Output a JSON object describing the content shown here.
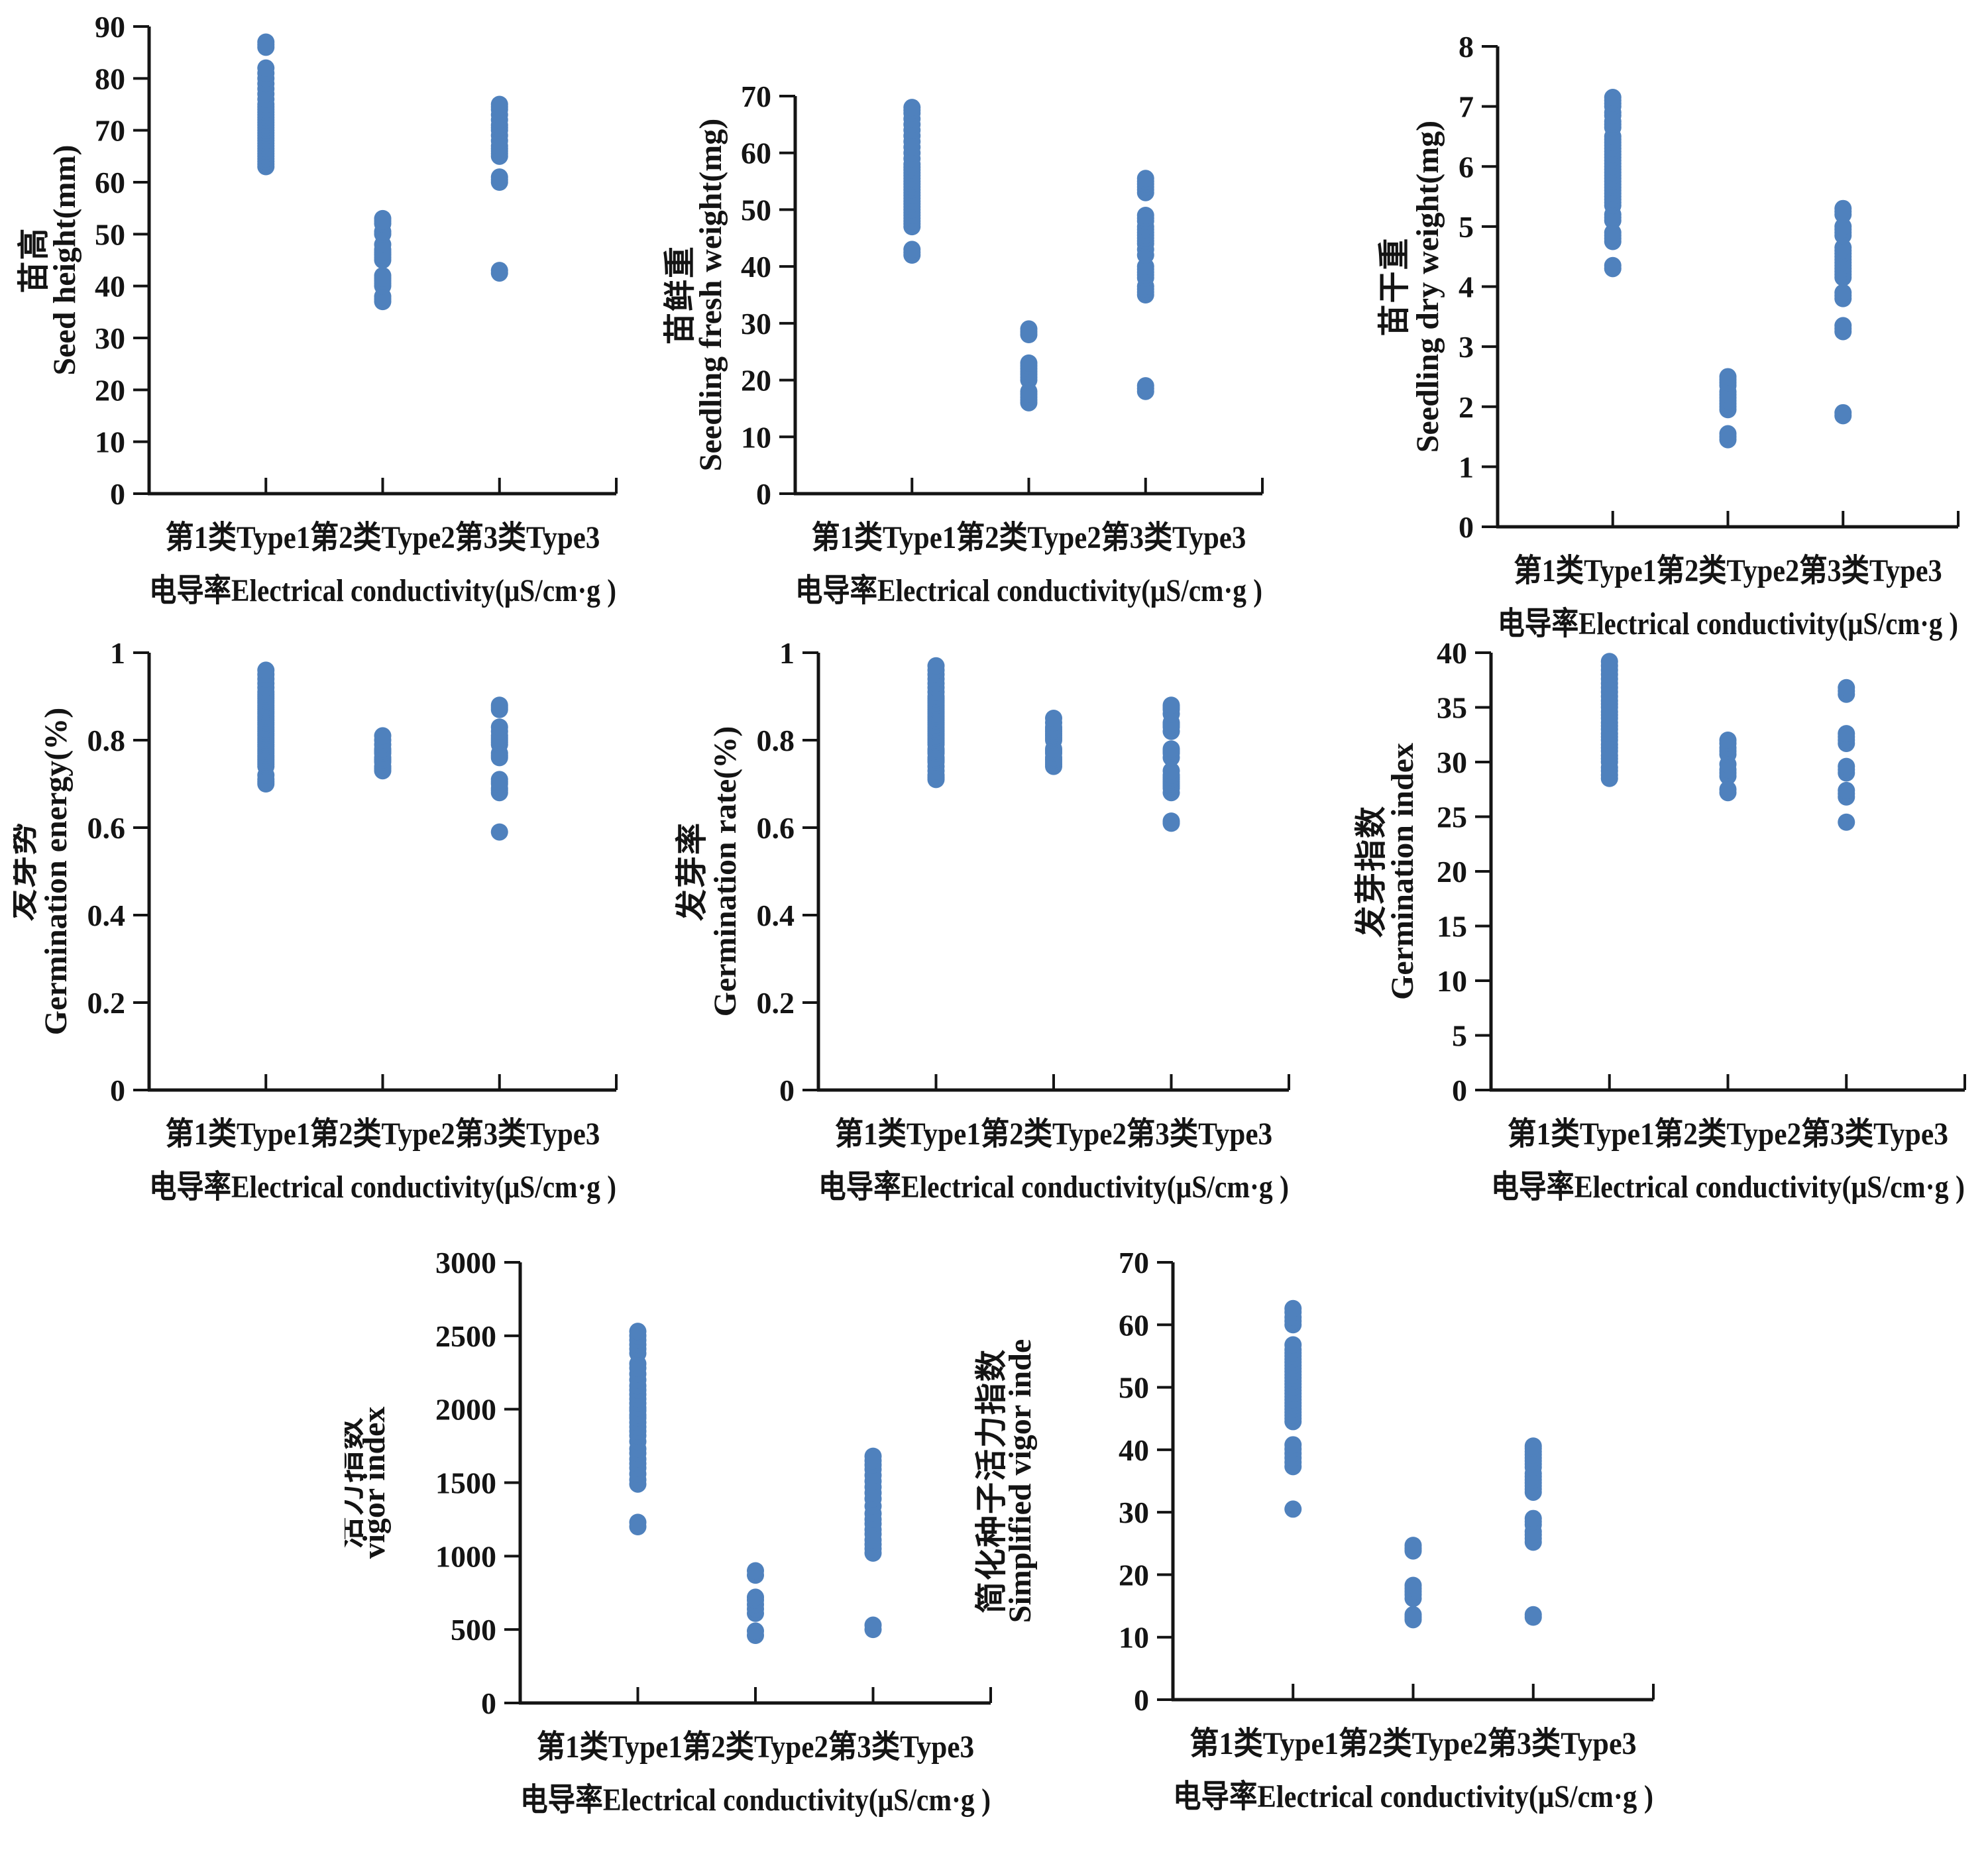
{
  "shared": {
    "x_tick_line": "第1类Type1第2类Type2第3类Type3",
    "x_axis_title": "电导率Electrical conductivity(μS/cm·g )",
    "categories": [
      "第1类Type1",
      "第2类Type2",
      "第3类Type3"
    ],
    "dot_color": "#4f81bd",
    "axis_color": "#141414",
    "background": "#ffffff"
  },
  "chart_data": [
    {
      "id": "seed-height",
      "type": "scatter",
      "ylabel_cn": "苗高",
      "ylabel_en": "Seed height(mm)",
      "ylim": [
        0,
        90
      ],
      "yticks": [
        0,
        10,
        20,
        30,
        40,
        50,
        60,
        70,
        80,
        90
      ],
      "xlim": [
        0,
        4
      ],
      "grid": false,
      "legend": "none",
      "series": [
        {
          "name": "第1类Type1",
          "x": 1,
          "values": [
            63,
            63.5,
            64,
            64.5,
            65,
            65.5,
            66,
            66.5,
            67,
            67.5,
            68,
            68.5,
            69,
            69.5,
            70,
            70.5,
            71,
            71.5,
            72,
            72.5,
            73,
            73.5,
            74,
            74.5,
            75,
            76,
            77,
            78,
            79,
            80,
            81,
            82,
            86,
            86.5,
            87
          ]
        },
        {
          "name": "第2类Type2",
          "x": 2,
          "values": [
            37,
            37.5,
            38,
            40,
            40.5,
            41,
            41.5,
            42,
            45,
            45.5,
            46,
            46.5,
            47,
            48,
            50,
            50.5,
            52,
            52.5,
            53
          ]
        },
        {
          "name": "第3类Type3",
          "x": 3,
          "values": [
            42.5,
            43,
            60,
            60.5,
            61,
            65,
            65.5,
            66,
            66.5,
            67,
            68,
            69,
            70,
            70.5,
            71,
            72,
            73,
            74,
            74.5,
            75
          ]
        }
      ]
    },
    {
      "id": "seedling-fresh-weight",
      "type": "scatter",
      "ylabel_cn": "苗鲜重",
      "ylabel_en": "Seedling fresh weight(mg)",
      "ylim": [
        0,
        70
      ],
      "yticks": [
        0,
        10,
        20,
        30,
        40,
        50,
        60,
        70
      ],
      "xlim": [
        0,
        4
      ],
      "grid": false,
      "legend": "none",
      "series": [
        {
          "name": "第1类Type1",
          "x": 1,
          "values": [
            42,
            42.5,
            43,
            47,
            47.5,
            48,
            48.5,
            49,
            49.5,
            50,
            50.5,
            51,
            51.5,
            52,
            52.5,
            53,
            53.5,
            54,
            54.5,
            55,
            55.5,
            56,
            56.5,
            57,
            57.5,
            58,
            59,
            60,
            61,
            62,
            63,
            64,
            65,
            66,
            67,
            67.5,
            68
          ]
        },
        {
          "name": "第2类Type2",
          "x": 2,
          "values": [
            16,
            16.5,
            17,
            17.5,
            18,
            20,
            20.5,
            21,
            21.5,
            22,
            22.5,
            23,
            28,
            28.5,
            29
          ]
        },
        {
          "name": "第3类Type3",
          "x": 3,
          "values": [
            18,
            18.5,
            19,
            35,
            35.5,
            36,
            36.5,
            38,
            38.5,
            39,
            39.5,
            40,
            42,
            43,
            44,
            44.5,
            45,
            45.5,
            46,
            46.5,
            47,
            48,
            48.5,
            49,
            53,
            53.5,
            54,
            54.5,
            55,
            55.5
          ]
        }
      ]
    },
    {
      "id": "seedling-dry-weight",
      "type": "scatter",
      "ylabel_cn": "苗干重",
      "ylabel_en": "Seedling dry weight(mg)",
      "ylim": [
        0,
        8
      ],
      "yticks": [
        0,
        1,
        2,
        3,
        4,
        5,
        6,
        7,
        8
      ],
      "xlim": [
        0,
        4
      ],
      "grid": false,
      "legend": "none",
      "series": [
        {
          "name": "第1类Type1",
          "x": 1,
          "values": [
            4.3,
            4.35,
            4.75,
            4.8,
            4.85,
            4.9,
            5.1,
            5.15,
            5.2,
            5.35,
            5.4,
            5.45,
            5.5,
            5.55,
            5.6,
            5.65,
            5.7,
            5.75,
            5.8,
            5.85,
            5.9,
            5.95,
            6.0,
            6.05,
            6.1,
            6.15,
            6.2,
            6.25,
            6.3,
            6.35,
            6.4,
            6.45,
            6.5,
            6.65,
            6.7,
            6.75,
            6.85,
            6.9,
            7.0,
            7.05,
            7.1,
            7.15
          ]
        },
        {
          "name": "第2类Type2",
          "x": 2,
          "values": [
            1.45,
            1.5,
            1.55,
            1.95,
            2.0,
            2.05,
            2.1,
            2.15,
            2.2,
            2.25,
            2.35,
            2.4,
            2.45,
            2.5
          ]
        },
        {
          "name": "第3类Type3",
          "x": 3,
          "values": [
            1.85,
            1.9,
            3.25,
            3.3,
            3.35,
            3.8,
            3.85,
            3.9,
            4.15,
            4.2,
            4.25,
            4.3,
            4.35,
            4.4,
            4.45,
            4.5,
            4.55,
            4.6,
            4.65,
            4.85,
            4.9,
            4.95,
            5.0,
            5.2,
            5.25,
            5.3
          ]
        }
      ]
    },
    {
      "id": "germination-energy",
      "type": "scatter",
      "ylabel_cn": "发芽势",
      "ylabel_en": "Germination energy(%)",
      "ylim": [
        0,
        1
      ],
      "yticks": [
        0,
        0.2,
        0.4,
        0.6,
        0.8,
        1
      ],
      "xlim": [
        0,
        4
      ],
      "grid": false,
      "legend": "none",
      "series": [
        {
          "name": "第1类Type1",
          "x": 1,
          "values": [
            0.7,
            0.705,
            0.71,
            0.72,
            0.74,
            0.745,
            0.75,
            0.755,
            0.76,
            0.765,
            0.77,
            0.775,
            0.78,
            0.785,
            0.79,
            0.795,
            0.8,
            0.805,
            0.81,
            0.815,
            0.82,
            0.825,
            0.83,
            0.835,
            0.84,
            0.845,
            0.85,
            0.855,
            0.86,
            0.865,
            0.87,
            0.875,
            0.88,
            0.885,
            0.89,
            0.895,
            0.9,
            0.905,
            0.91,
            0.92,
            0.93,
            0.94,
            0.95,
            0.96
          ]
        },
        {
          "name": "第2类Type2",
          "x": 2,
          "values": [
            0.73,
            0.735,
            0.74,
            0.75,
            0.755,
            0.76,
            0.77,
            0.775,
            0.78,
            0.79,
            0.8,
            0.81
          ]
        },
        {
          "name": "第3类Type3",
          "x": 3,
          "values": [
            0.59,
            0.68,
            0.685,
            0.69,
            0.7,
            0.705,
            0.71,
            0.76,
            0.765,
            0.77,
            0.79,
            0.795,
            0.8,
            0.805,
            0.81,
            0.82,
            0.83,
            0.87,
            0.875,
            0.88
          ]
        }
      ]
    },
    {
      "id": "germination-rate",
      "type": "scatter",
      "ylabel_cn": "发芽率",
      "ylabel_en": "Germination rate(%)",
      "ylim": [
        0,
        1
      ],
      "yticks": [
        0,
        0.2,
        0.4,
        0.6,
        0.8,
        1
      ],
      "xlim": [
        0,
        4
      ],
      "grid": false,
      "legend": "none",
      "series": [
        {
          "name": "第1类Type1",
          "x": 1,
          "values": [
            0.71,
            0.715,
            0.72,
            0.73,
            0.74,
            0.75,
            0.755,
            0.76,
            0.77,
            0.775,
            0.78,
            0.79,
            0.795,
            0.8,
            0.805,
            0.81,
            0.815,
            0.82,
            0.825,
            0.83,
            0.835,
            0.84,
            0.845,
            0.85,
            0.855,
            0.86,
            0.865,
            0.87,
            0.875,
            0.88,
            0.885,
            0.89,
            0.895,
            0.9,
            0.91,
            0.92,
            0.93,
            0.94,
            0.95,
            0.96,
            0.97
          ]
        },
        {
          "name": "第2类Type2",
          "x": 2,
          "values": [
            0.74,
            0.745,
            0.75,
            0.755,
            0.76,
            0.77,
            0.775,
            0.78,
            0.8,
            0.805,
            0.81,
            0.815,
            0.82,
            0.825,
            0.83,
            0.84,
            0.85
          ]
        },
        {
          "name": "第3类Type3",
          "x": 3,
          "values": [
            0.61,
            0.615,
            0.68,
            0.69,
            0.695,
            0.7,
            0.705,
            0.71,
            0.715,
            0.72,
            0.73,
            0.76,
            0.77,
            0.775,
            0.78,
            0.82,
            0.83,
            0.835,
            0.84,
            0.86,
            0.87,
            0.875,
            0.88
          ]
        }
      ]
    },
    {
      "id": "germination-index",
      "type": "scatter",
      "ylabel_cn": "发芽指数",
      "ylabel_en": "Germination index",
      "ylim": [
        0,
        40
      ],
      "yticks": [
        0,
        5,
        10,
        15,
        20,
        25,
        30,
        35,
        40
      ],
      "xlim": [
        0,
        4
      ],
      "grid": false,
      "legend": "none",
      "series": [
        {
          "name": "第1类Type1",
          "x": 1,
          "values": [
            28.5,
            28.8,
            29.2,
            29.5,
            30,
            30.3,
            30.6,
            31,
            31.3,
            31.6,
            32,
            32.3,
            32.6,
            33,
            33.3,
            33.6,
            34,
            34.3,
            34.6,
            35,
            35.3,
            35.6,
            36,
            36.4,
            36.8,
            37.2,
            37.6,
            38,
            38.4,
            38.8,
            39.2
          ]
        },
        {
          "name": "第2类Type2",
          "x": 2,
          "values": [
            27.2,
            27.5,
            28.7,
            29,
            29.3,
            29.8,
            30.7,
            31,
            31.3,
            31.7,
            32
          ]
        },
        {
          "name": "第3类Type3",
          "x": 3,
          "values": [
            24.5,
            26.8,
            27.1,
            27.4,
            29,
            29.3,
            29.6,
            31.7,
            32,
            32.3,
            32.6,
            36.2,
            36.5,
            36.8
          ]
        }
      ]
    },
    {
      "id": "vigor-index",
      "type": "scatter",
      "ylabel_cn": "活力指数",
      "ylabel_en": "vigor index",
      "ylim": [
        0,
        3000
      ],
      "yticks": [
        0,
        500,
        1000,
        1500,
        2000,
        2500,
        3000
      ],
      "xlim": [
        0,
        4
      ],
      "grid": false,
      "legend": "none",
      "series": [
        {
          "name": "第1类Type1",
          "x": 1,
          "values": [
            1200,
            1230,
            1490,
            1520,
            1560,
            1600,
            1630,
            1660,
            1700,
            1730,
            1780,
            1820,
            1850,
            1880,
            1910,
            1940,
            1960,
            1990,
            2010,
            2040,
            2070,
            2100,
            2130,
            2160,
            2200,
            2240,
            2280,
            2310,
            2380,
            2410,
            2440,
            2470,
            2500,
            2530
          ]
        },
        {
          "name": "第2类Type2",
          "x": 2,
          "values": [
            460,
            490,
            610,
            640,
            670,
            700,
            720,
            870,
            900
          ]
        },
        {
          "name": "第3类Type3",
          "x": 3,
          "values": [
            500,
            530,
            1020,
            1050,
            1080,
            1110,
            1150,
            1180,
            1220,
            1250,
            1290,
            1340,
            1390,
            1430,
            1470,
            1510,
            1550,
            1590,
            1620,
            1650,
            1680
          ]
        }
      ]
    },
    {
      "id": "simplified-vigor-index",
      "type": "scatter",
      "ylabel_cn": "简化种子活力指数",
      "ylabel_en": "Simplified vigor inde",
      "ylim": [
        0,
        70
      ],
      "yticks": [
        0,
        10,
        20,
        30,
        40,
        50,
        60,
        70
      ],
      "xlim": [
        0,
        4
      ],
      "grid": false,
      "legend": "none",
      "series": [
        {
          "name": "第1类Type1",
          "x": 1,
          "values": [
            30.5,
            37.3,
            38,
            38.7,
            39.4,
            40.1,
            40.8,
            44.5,
            45,
            45.5,
            46,
            46.5,
            47,
            47.5,
            48,
            48.5,
            49,
            49.5,
            50,
            50.5,
            51,
            51.5,
            52,
            52.5,
            53,
            53.5,
            54,
            54.5,
            55,
            55.5,
            56,
            56.8,
            60,
            60.6,
            61.2,
            62,
            62.6
          ]
        },
        {
          "name": "第2类Type2",
          "x": 2,
          "values": [
            12.8,
            13.2,
            13.6,
            16.2,
            16.8,
            17.3,
            17.8,
            18.3,
            23.8,
            24.2,
            24.7
          ]
        },
        {
          "name": "第3类Type3",
          "x": 3,
          "values": [
            13.2,
            13.6,
            25.2,
            25.8,
            26.4,
            26.9,
            28,
            28.5,
            29,
            33.2,
            33.7,
            34.2,
            34.7,
            35.2,
            35.7,
            36.2,
            37.2,
            37.7,
            38.2,
            38.7,
            39.2,
            39.7,
            40.2,
            40.6
          ]
        }
      ]
    }
  ]
}
